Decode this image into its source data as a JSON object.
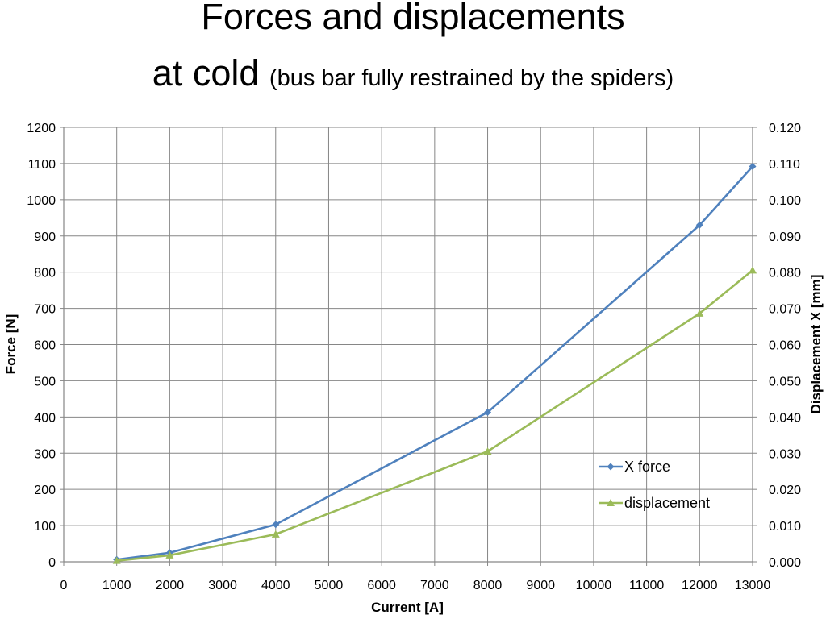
{
  "title_line1": "Forces and displacements",
  "title_line2_main": "at cold",
  "title_line2_sub": "(bus bar fully restrained by the spiders)",
  "chart_data": {
    "type": "line",
    "title": "Forces and displacements at cold (bus bar fully restrained by the spiders)",
    "xlabel": "Current [A]",
    "ylabel": "Force [N]",
    "y2label": "Displacement X [mm]",
    "xlim": [
      0,
      13000
    ],
    "ylim": [
      0,
      1200
    ],
    "y2lim": [
      0,
      0.12
    ],
    "x_ticks": [
      0,
      1000,
      2000,
      3000,
      4000,
      5000,
      6000,
      7000,
      8000,
      9000,
      10000,
      11000,
      12000,
      13000
    ],
    "y_ticks": [
      0,
      100,
      200,
      300,
      400,
      500,
      600,
      700,
      800,
      900,
      1000,
      1100,
      1200
    ],
    "y2_ticks": [
      "0.000",
      "0.010",
      "0.020",
      "0.030",
      "0.040",
      "0.050",
      "0.060",
      "0.070",
      "0.080",
      "0.090",
      "0.100",
      "0.110",
      "0.120"
    ],
    "grid": true,
    "legend_position": "bottom-right",
    "series": [
      {
        "name": "X force",
        "axis": "left",
        "color": "#4F81BD",
        "marker": "diamond",
        "x": [
          1000,
          2000,
          4000,
          8000,
          12000,
          13000
        ],
        "values": [
          6,
          25,
          103,
          413,
          930,
          1092
        ]
      },
      {
        "name": "displacement",
        "axis": "right",
        "color": "#9BBB59",
        "marker": "triangle",
        "x": [
          1000,
          2000,
          4000,
          8000,
          12000,
          13000
        ],
        "values": [
          0.0003,
          0.0018,
          0.0076,
          0.0305,
          0.0686,
          0.0805
        ]
      }
    ]
  }
}
